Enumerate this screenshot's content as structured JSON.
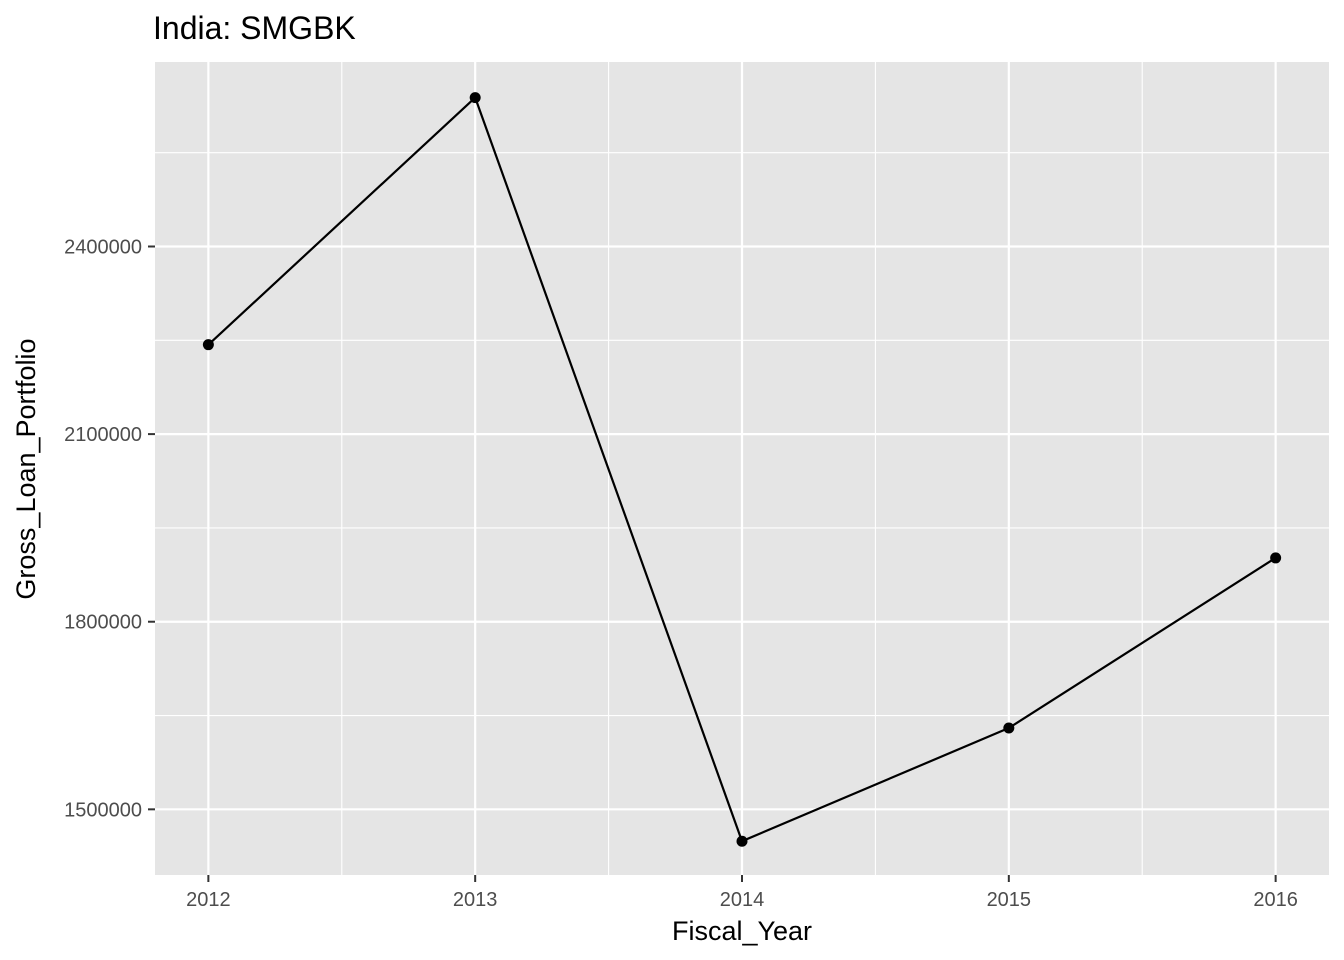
{
  "chart_data": {
    "type": "line",
    "title": "India:  SMGBK",
    "xlabel": "Fiscal_Year",
    "ylabel": "Gross_Loan_Portfolio",
    "x": [
      2012,
      2013,
      2014,
      2015,
      2016
    ],
    "series": [
      {
        "values": [
          2243000,
          2638000,
          1449000,
          1630000,
          1902000
        ]
      }
    ],
    "xlim": [
      2011.8,
      2016.2
    ],
    "ylim": [
      1395000,
      2695000
    ],
    "x_ticks": [
      2012,
      2013,
      2014,
      2015,
      2016
    ],
    "x_tick_labels": [
      "2012",
      "2013",
      "2014",
      "2015",
      "2016"
    ],
    "y_ticks": [
      1500000,
      1800000,
      2100000,
      2400000
    ],
    "y_tick_labels": [
      "1500000",
      "1800000",
      "2100000",
      "2400000"
    ],
    "grid": true,
    "colors": {
      "panel": "#e5e5e5",
      "grid": "#ffffff",
      "line": "#000000",
      "point": "#000000"
    }
  }
}
